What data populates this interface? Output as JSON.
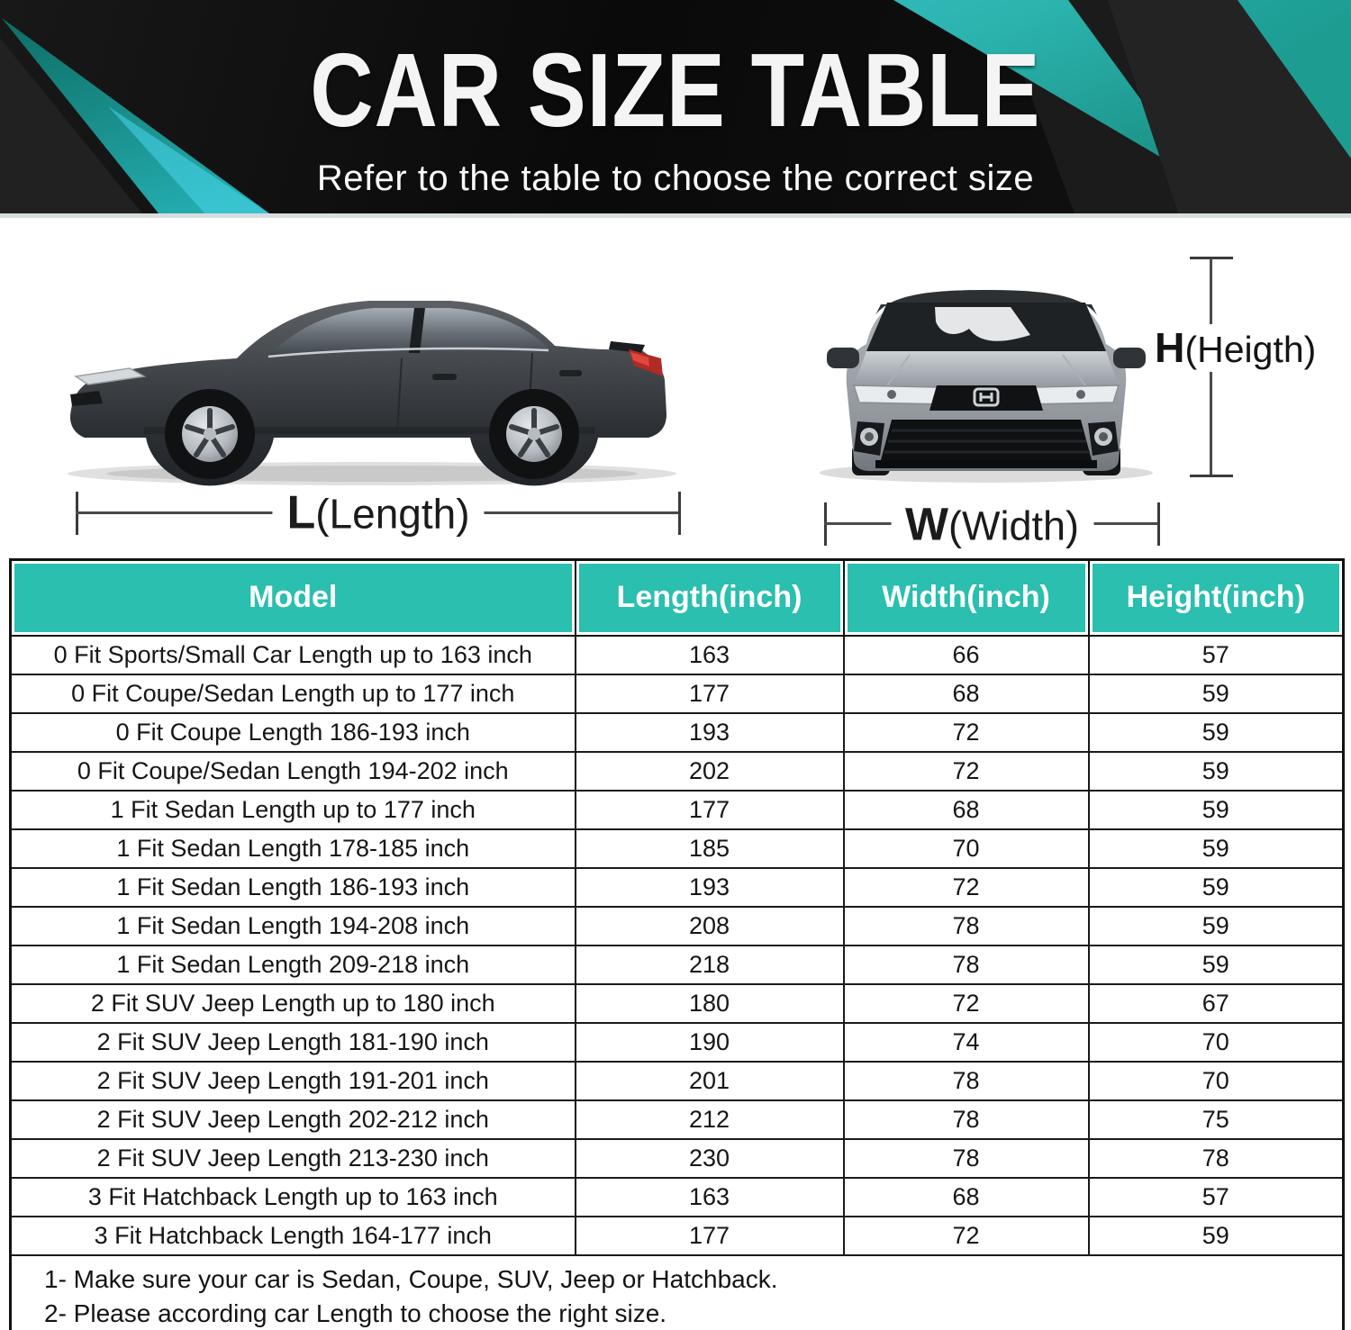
{
  "banner": {
    "title": "CAR SIZE TABLE",
    "subtitle": "Refer to the table to choose the correct size"
  },
  "diagram": {
    "length": {
      "letter": "L",
      "rest": "(Length)"
    },
    "width": {
      "letter": "W",
      "rest": "(Width)"
    },
    "height": {
      "letter": "H",
      "rest": "(Heigth)"
    }
  },
  "chart_data": {
    "type": "table",
    "title": "CAR SIZE TABLE",
    "columns": [
      "Model",
      "Length(inch)",
      "Width(inch)",
      "Height(inch)"
    ],
    "rows": [
      [
        "0 Fit Sports/Small Car Length up to 163 inch",
        163,
        66,
        57
      ],
      [
        "0 Fit Coupe/Sedan Length up to 177 inch",
        177,
        68,
        59
      ],
      [
        "0 Fit Coupe Length 186-193 inch",
        193,
        72,
        59
      ],
      [
        "0 Fit Coupe/Sedan Length 194-202 inch",
        202,
        72,
        59
      ],
      [
        "1 Fit Sedan Length up to 177 inch",
        177,
        68,
        59
      ],
      [
        "1 Fit Sedan Length 178-185 inch",
        185,
        70,
        59
      ],
      [
        "1 Fit Sedan Length 186-193 inch",
        193,
        72,
        59
      ],
      [
        "1 Fit Sedan Length 194-208 inch",
        208,
        78,
        59
      ],
      [
        "1 Fit Sedan Length 209-218 inch",
        218,
        78,
        59
      ],
      [
        "2 Fit SUV Jeep Length up to 180 inch",
        180,
        72,
        67
      ],
      [
        "2 Fit SUV Jeep Length 181-190 inch",
        190,
        74,
        70
      ],
      [
        "2 Fit SUV Jeep Length 191-201 inch",
        201,
        78,
        70
      ],
      [
        "2 Fit SUV Jeep Length 202-212 inch",
        212,
        78,
        75
      ],
      [
        "2 Fit SUV Jeep Length 213-230 inch",
        230,
        78,
        78
      ],
      [
        "3 Fit Hatchback Length up to 163 inch",
        163,
        68,
        57
      ],
      [
        "3 Fit Hatchback Length 164-177 inch",
        177,
        72,
        59
      ]
    ]
  },
  "table": {
    "notes": [
      "1- Make sure your car is Sedan, Coupe, SUV, Jeep or Hatchback.",
      "2- Please according car Length to choose the right size."
    ]
  },
  "colors": {
    "header_teal": "#2abfae",
    "banner_teal_bright": "#41cfe8",
    "banner_teal_dark": "#117e6e",
    "banner_background": "#0d0d0d",
    "table_border": "#1a1a1a",
    "taillight_red": "#b02a26"
  }
}
